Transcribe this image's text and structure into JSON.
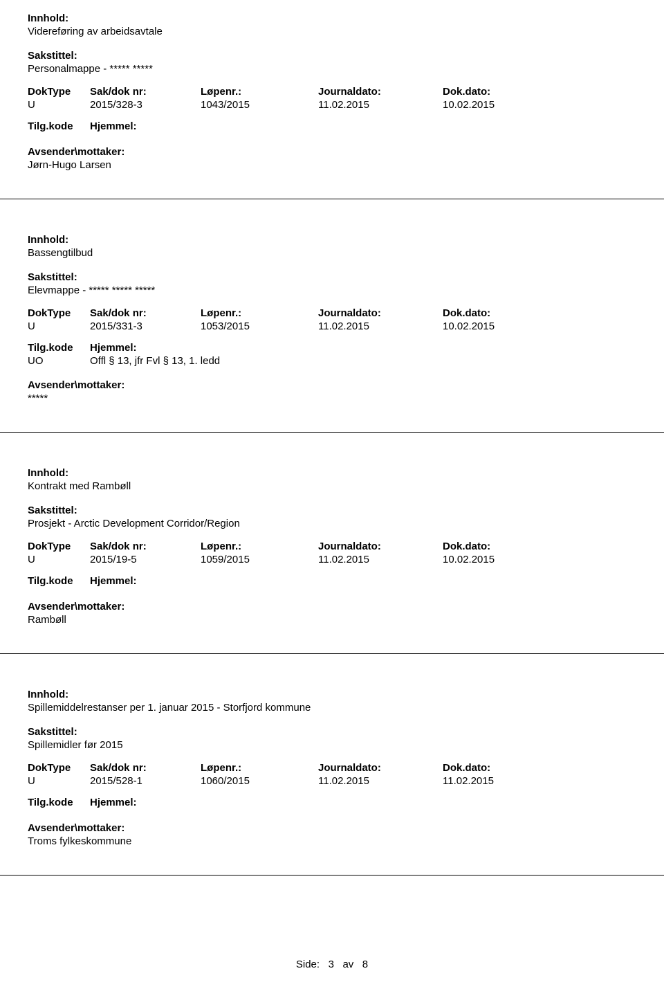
{
  "labels": {
    "innhold": "Innhold:",
    "sakstittel": "Sakstittel:",
    "doktype": "DokType",
    "sakdoknr": "Sak/dok nr:",
    "lopenr": "Løpenr.:",
    "journaldato": "Journaldato:",
    "dokdato": "Dok.dato:",
    "tilgkode": "Tilg.kode",
    "hjemmel": "Hjemmel:",
    "avsender": "Avsender\\mottaker:"
  },
  "records": [
    {
      "innhold": "Videreføring av arbeidsavtale",
      "sakstittel": "Personalmappe - ***** *****",
      "doktype": "U",
      "sakdoknr": "2015/328-3",
      "lopenr": "1043/2015",
      "journaldato": "11.02.2015",
      "dokdato": "10.02.2015",
      "tilgkode": "",
      "hjemmel": "",
      "avsender": "Jørn-Hugo Larsen"
    },
    {
      "innhold": "Bassengtilbud",
      "sakstittel": "Elevmappe - ***** ***** *****",
      "doktype": "U",
      "sakdoknr": "2015/331-3",
      "lopenr": "1053/2015",
      "journaldato": "11.02.2015",
      "dokdato": "10.02.2015",
      "tilgkode": "UO",
      "hjemmel": "Offl § 13, jfr Fvl § 13, 1. ledd",
      "avsender": "*****"
    },
    {
      "innhold": "Kontrakt med Rambøll",
      "sakstittel": "Prosjekt - Arctic Development Corridor/Region",
      "doktype": "U",
      "sakdoknr": "2015/19-5",
      "lopenr": "1059/2015",
      "journaldato": "11.02.2015",
      "dokdato": "10.02.2015",
      "tilgkode": "",
      "hjemmel": "",
      "avsender": "Rambøll"
    },
    {
      "innhold": "Spillemiddelrestanser per 1. januar 2015 - Storfjord kommune",
      "sakstittel": "Spillemidler før 2015",
      "doktype": "U",
      "sakdoknr": "2015/528-1",
      "lopenr": "1060/2015",
      "journaldato": "11.02.2015",
      "dokdato": "11.02.2015",
      "tilgkode": "",
      "hjemmel": "",
      "avsender": "Troms fylkeskommune"
    }
  ],
  "footer": {
    "text_prefix": "Side:",
    "page_current": "3",
    "text_mid": "av",
    "page_total": "8"
  }
}
